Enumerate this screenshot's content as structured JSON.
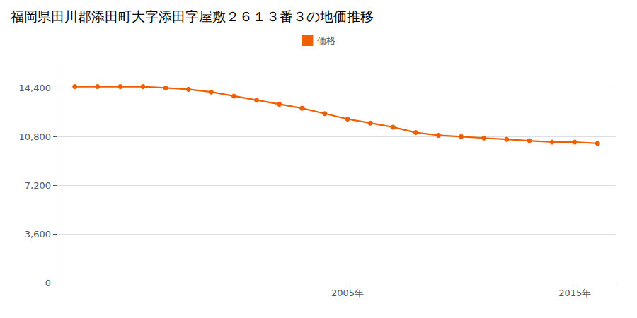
{
  "chart_data": {
    "type": "line",
    "title": "福岡県田川郡添田町大字添田字屋敷２６１３番３の地価推移",
    "series": [
      {
        "name": "価格",
        "color": "#f06000",
        "marker": "circle",
        "values": [
          14500,
          14500,
          14500,
          14500,
          14400,
          14300,
          14100,
          13800,
          13500,
          13200,
          12900,
          12500,
          12100,
          11800,
          11500,
          11100,
          10900,
          10800,
          10700,
          10600,
          10500,
          10400,
          10400,
          10300
        ]
      }
    ],
    "x": [
      1993,
      1994,
      1995,
      1996,
      1997,
      1998,
      1999,
      2000,
      2001,
      2002,
      2003,
      2004,
      2005,
      2006,
      2007,
      2008,
      2009,
      2010,
      2011,
      2012,
      2013,
      2014,
      2015,
      2016
    ],
    "xlim": [
      1992.2,
      2016.8
    ],
    "xticks": [
      {
        "value": 2005,
        "label": "2005年"
      },
      {
        "value": 2015,
        "label": "2015年"
      }
    ],
    "ylim": [
      0,
      16200
    ],
    "yticks": [
      0,
      {
        "value": 3600,
        "label": "3,600"
      },
      {
        "value": 7200,
        "label": "7,200"
      },
      {
        "value": 10800,
        "label": "10,800"
      },
      {
        "value": 14400,
        "label": "14,400"
      }
    ],
    "grid": "y",
    "legend": "top"
  }
}
